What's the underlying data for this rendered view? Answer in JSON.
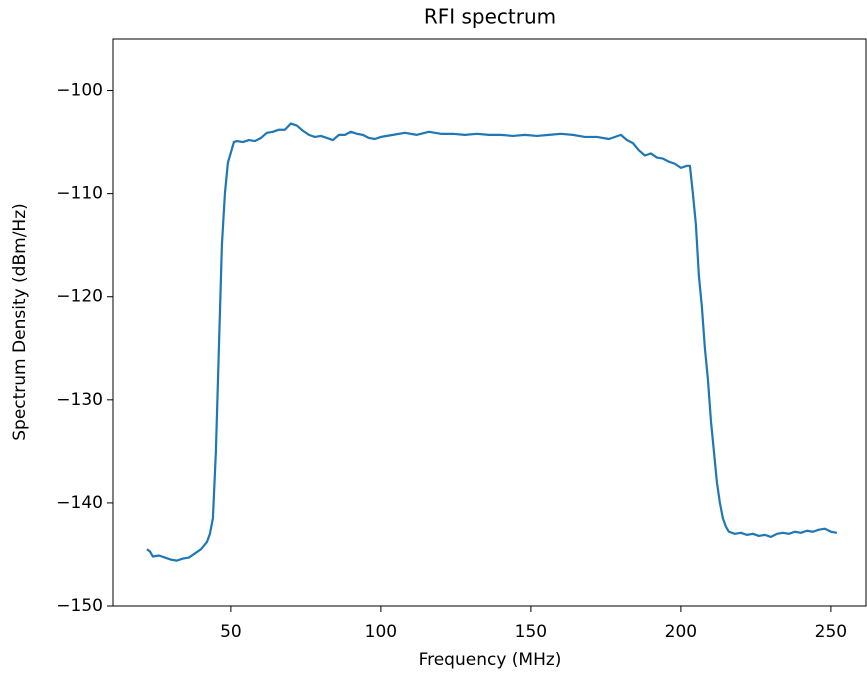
{
  "chart_data": {
    "type": "line",
    "title": "RFI spectrum",
    "xlabel": "Frequency (MHz)",
    "ylabel": "Spectrum Density (dBm/Hz)",
    "xlim": [
      10.7,
      261.7
    ],
    "ylim": [
      -150,
      -95
    ],
    "xticks": [
      50,
      100,
      150,
      200,
      250
    ],
    "yticks": [
      -150,
      -140,
      -130,
      -120,
      -110,
      -100
    ],
    "series": [
      {
        "name": "RFI",
        "color": "#1f77b4",
        "x": [
          22,
          23,
          24,
          26,
          28,
          30,
          32,
          34,
          36,
          38,
          40,
          42,
          43,
          44,
          45,
          46,
          47,
          48,
          49,
          50,
          51,
          52,
          54,
          56,
          58,
          60,
          62,
          64,
          66,
          68,
          70,
          72,
          74,
          76,
          78,
          80,
          82,
          84,
          86,
          88,
          90,
          92,
          94,
          96,
          98,
          100,
          104,
          108,
          112,
          116,
          120,
          124,
          128,
          132,
          136,
          140,
          144,
          148,
          152,
          156,
          160,
          164,
          168,
          172,
          176,
          180,
          182,
          184,
          186,
          188,
          190,
          192,
          194,
          196,
          198,
          200,
          202,
          203,
          204,
          205,
          206,
          207,
          208,
          209,
          210,
          211,
          212,
          213,
          214,
          215,
          216,
          218,
          220,
          222,
          224,
          226,
          228,
          230,
          232,
          234,
          236,
          238,
          240,
          242,
          244,
          246,
          248,
          250,
          252
        ],
        "values": [
          -144.5,
          -144.7,
          -145.2,
          -145.1,
          -145.3,
          -145.5,
          -145.6,
          -145.4,
          -145.3,
          -144.9,
          -144.5,
          -143.8,
          -143.0,
          -141.5,
          -135,
          -125,
          -115,
          -110,
          -107,
          -106,
          -105,
          -104.9,
          -105.0,
          -104.8,
          -104.9,
          -104.6,
          -104.1,
          -104.0,
          -103.8,
          -103.8,
          -103.2,
          -103.4,
          -103.9,
          -104.3,
          -104.5,
          -104.4,
          -104.6,
          -104.8,
          -104.3,
          -104.3,
          -104.0,
          -104.2,
          -104.3,
          -104.6,
          -104.7,
          -104.5,
          -104.3,
          -104.1,
          -104.3,
          -104.0,
          -104.2,
          -104.2,
          -104.3,
          -104.2,
          -104.3,
          -104.3,
          -104.4,
          -104.3,
          -104.4,
          -104.3,
          -104.2,
          -104.3,
          -104.5,
          -104.5,
          -104.7,
          -104.3,
          -104.8,
          -105.1,
          -105.8,
          -106.3,
          -106.1,
          -106.5,
          -106.6,
          -106.9,
          -107.1,
          -107.5,
          -107.3,
          -107.3,
          -110,
          -113,
          -118,
          -121,
          -125,
          -128,
          -132,
          -135,
          -138,
          -140,
          -141.5,
          -142.3,
          -142.8,
          -143.0,
          -142.9,
          -143.1,
          -143.0,
          -143.2,
          -143.1,
          -143.3,
          -143.0,
          -142.9,
          -143.0,
          -142.8,
          -142.9,
          -142.7,
          -142.8,
          -142.6,
          -142.5,
          -142.8,
          -142.9
        ]
      }
    ]
  }
}
